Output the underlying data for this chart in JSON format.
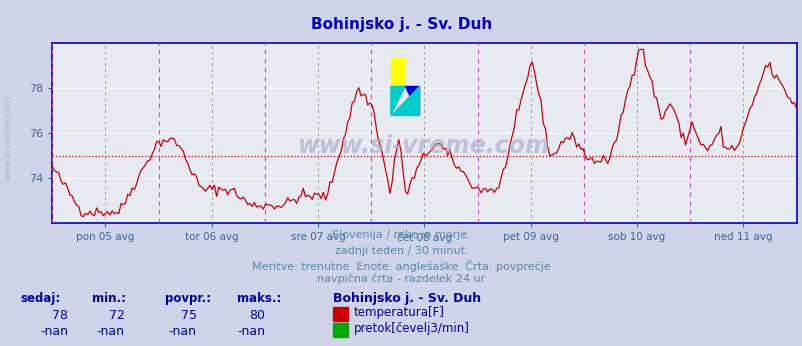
{
  "title": "Bohinjsko j. - Sv. Duh",
  "title_color": "#0000cc",
  "bg_color": "#d0d4e8",
  "plot_bg_color": "#e8eaf2",
  "line_color": "#cc0000",
  "avg_line_color": "#cc0000",
  "grid_color": "#ffffff",
  "axis_color": "#0000bb",
  "tick_color": "#336699",
  "ymin": 72,
  "ymax": 80,
  "yticks": [
    74,
    76,
    78
  ],
  "avg_value": 75.0,
  "day_labels": [
    "pon 05 avg",
    "tor 06 avg",
    "sre 07 avg",
    "čet 08 avg",
    "pet 09 avg",
    "sob 10 avg",
    "ned 11 avg"
  ],
  "subtitle_lines": [
    "Slovenija / reke in morje.",
    "zadnji teden / 30 minut.",
    "Meritve: trenutne  Enote: anglešaške  Črta: povprečje",
    "navpična črta - razdelek 24 ur"
  ],
  "subtitle_color": "#5588aa",
  "watermark": "www.si-vreme.com",
  "watermark_color": "#aaaacc",
  "legend_title": "Bohinjsko j. - Sv. Duh",
  "legend_color": "#0000aa",
  "stats_labels": [
    "sedaj:",
    "min.:",
    "povpr.:",
    "maks.:"
  ],
  "stats_color": "#0000aa",
  "stats_values_temp": [
    "78",
    "72",
    "75",
    "80"
  ],
  "stats_values_flow": [
    "-nan",
    "-nan",
    "-nan",
    "-nan"
  ],
  "temp_label": "temperatura[F]",
  "flow_label": "pretok[čevelj3/min]",
  "temp_color": "#cc0000",
  "flow_color": "#00aa00",
  "left_label": "www.si-vreme.com",
  "left_label_color": "#aaaacc",
  "n_points": 336
}
